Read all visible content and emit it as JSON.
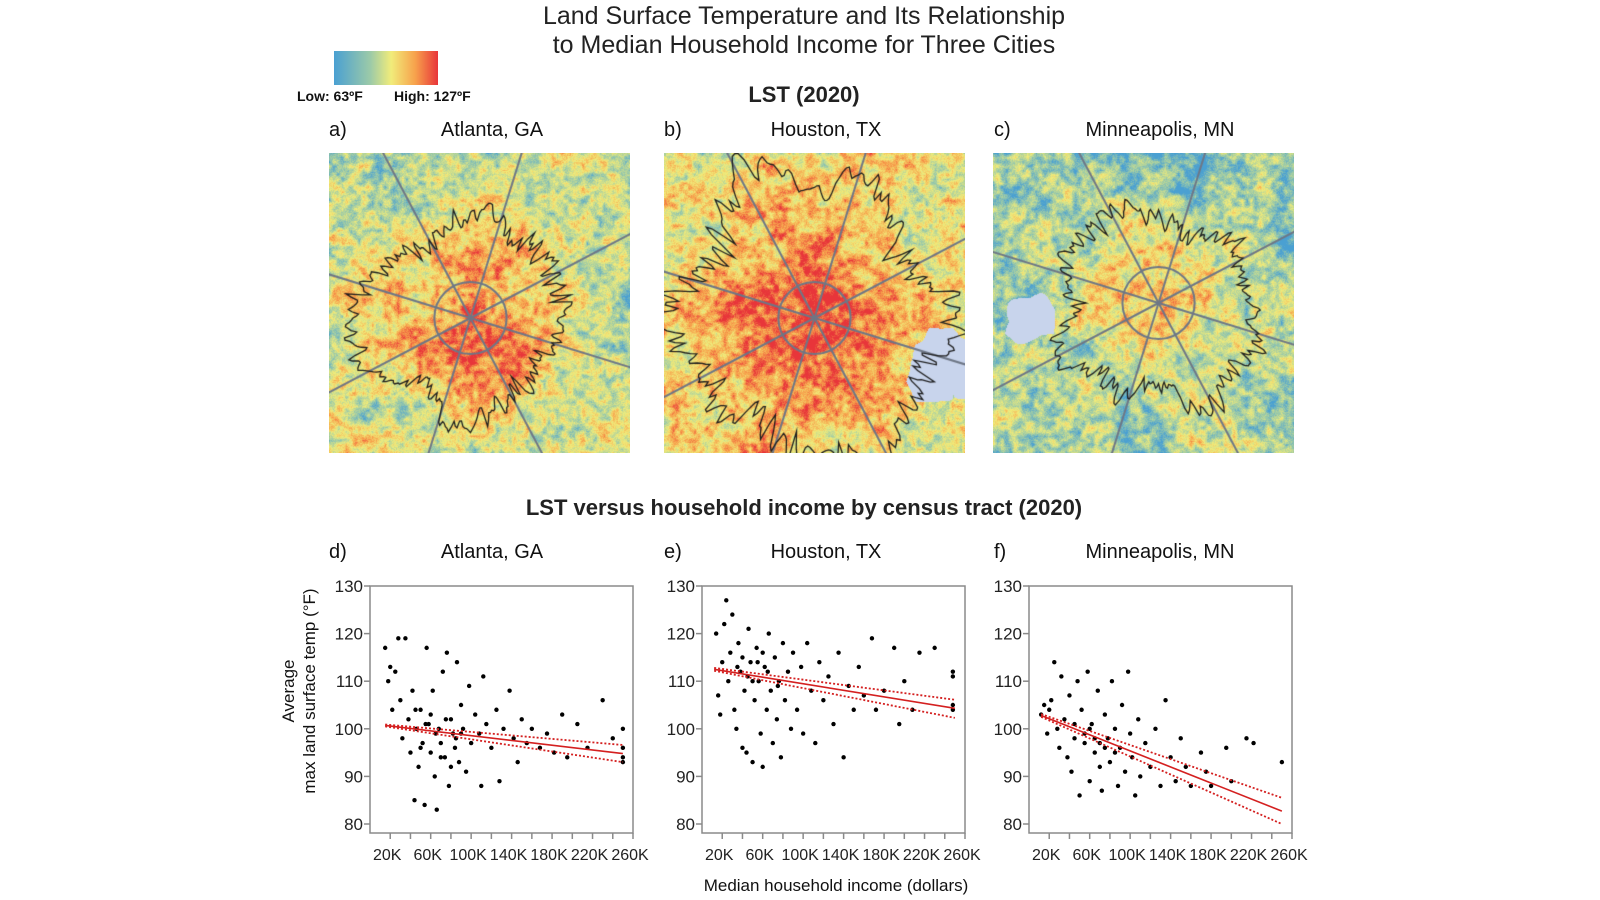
{
  "title_line1": "Land Surface Temperature and Its Relationship",
  "title_line2": "to Median Household Income for Three Cities",
  "legend": {
    "low_label": "Low: 63ºF",
    "high_label": "High: 127ºF",
    "colors": [
      "#4aa0d2",
      "#9ccaa8",
      "#f1ec7a",
      "#f7a24c",
      "#e8353a"
    ]
  },
  "maps_section_title": "LST (2020)",
  "maps": [
    {
      "panel": "a)",
      "city": "Atlanta, GA"
    },
    {
      "panel": "b)",
      "city": "Houston, TX"
    },
    {
      "panel": "c)",
      "city": "Minneapolis, MN"
    }
  ],
  "scatter_section_title": "LST versus household income by census tract (2020)",
  "x_axis_title": "Median household income (dollars)",
  "y_axis_title_line1": "Average",
  "y_axis_title_line2": "max land surface temp (°F)",
  "chart_data": [
    {
      "type": "scatter",
      "panel": "d)",
      "title": "Atlanta, GA",
      "xlabel": "Median household income (dollars)",
      "ylabel": "Average max land surface temp (°F)",
      "x_unit": "thousands of dollars",
      "xlim": [
        0,
        260
      ],
      "ylim": [
        78,
        130
      ],
      "x_ticks": [
        "20K",
        "60K",
        "100K",
        "140K",
        "180K",
        "220K",
        "260K"
      ],
      "y_ticks": [
        "80",
        "90",
        "100",
        "110",
        "120",
        "130"
      ],
      "point_color": "#000000",
      "fit_color": "#d42020",
      "points": [
        [
          15,
          117
        ],
        [
          18,
          110
        ],
        [
          20,
          113
        ],
        [
          22,
          104
        ],
        [
          25,
          112
        ],
        [
          28,
          119
        ],
        [
          30,
          106
        ],
        [
          32,
          98
        ],
        [
          35,
          119
        ],
        [
          38,
          102
        ],
        [
          40,
          95
        ],
        [
          42,
          108
        ],
        [
          44,
          85
        ],
        [
          46,
          100
        ],
        [
          48,
          92
        ],
        [
          50,
          104
        ],
        [
          52,
          97
        ],
        [
          54,
          84
        ],
        [
          56,
          117
        ],
        [
          58,
          101
        ],
        [
          60,
          95
        ],
        [
          62,
          108
        ],
        [
          64,
          90
        ],
        [
          66,
          83
        ],
        [
          68,
          100
        ],
        [
          70,
          97
        ],
        [
          72,
          112
        ],
        [
          74,
          94
        ],
        [
          76,
          116
        ],
        [
          78,
          88
        ],
        [
          80,
          102
        ],
        [
          82,
          99
        ],
        [
          84,
          96
        ],
        [
          86,
          114
        ],
        [
          88,
          93
        ],
        [
          90,
          105
        ],
        [
          92,
          100
        ],
        [
          95,
          91
        ],
        [
          98,
          109
        ],
        [
          100,
          97
        ],
        [
          104,
          103
        ],
        [
          108,
          99
        ],
        [
          110,
          88
        ],
        [
          112,
          111
        ],
        [
          115,
          101
        ],
        [
          120,
          96
        ],
        [
          125,
          104
        ],
        [
          128,
          89
        ],
        [
          132,
          100
        ],
        [
          138,
          108
        ],
        [
          142,
          98
        ],
        [
          146,
          93
        ],
        [
          150,
          102
        ],
        [
          155,
          97
        ],
        [
          160,
          100
        ],
        [
          168,
          96
        ],
        [
          175,
          99
        ],
        [
          182,
          95
        ],
        [
          190,
          103
        ],
        [
          195,
          94
        ],
        [
          205,
          101
        ],
        [
          215,
          96
        ],
        [
          230,
          106
        ],
        [
          240,
          98
        ],
        [
          250,
          100
        ],
        [
          250,
          96
        ],
        [
          250,
          93
        ],
        [
          250,
          94
        ],
        [
          45,
          104
        ],
        [
          55,
          101
        ],
        [
          65,
          99
        ],
        [
          75,
          102
        ],
        [
          85,
          98
        ],
        [
          60,
          103
        ],
        [
          70,
          94
        ],
        [
          50,
          96
        ],
        [
          80,
          92
        ],
        [
          90,
          99
        ]
      ],
      "fit": {
        "x": [
          15,
          250
        ],
        "y": [
          100.7,
          94.8
        ],
        "ci_upper": [
          100.9,
          96.6
        ],
        "ci_lower": [
          100.5,
          93.0
        ]
      }
    },
    {
      "type": "scatter",
      "panel": "e)",
      "title": "Houston, TX",
      "xlabel": "Median household income (dollars)",
      "ylabel": "Average max land surface temp (°F)",
      "x_unit": "thousands of dollars",
      "xlim": [
        0,
        260
      ],
      "ylim": [
        78,
        130
      ],
      "x_ticks": [
        "20K",
        "60K",
        "100K",
        "140K",
        "180K",
        "220K",
        "260K"
      ],
      "y_ticks": [
        "80",
        "90",
        "100",
        "110",
        "120",
        "130"
      ],
      "point_color": "#000000",
      "fit_color": "#d42020",
      "points": [
        [
          14,
          120
        ],
        [
          16,
          107
        ],
        [
          18,
          103
        ],
        [
          20,
          114
        ],
        [
          22,
          122
        ],
        [
          24,
          127
        ],
        [
          26,
          110
        ],
        [
          28,
          116
        ],
        [
          30,
          124
        ],
        [
          32,
          104
        ],
        [
          34,
          100
        ],
        [
          36,
          118
        ],
        [
          38,
          112
        ],
        [
          40,
          96
        ],
        [
          42,
          108
        ],
        [
          44,
          95
        ],
        [
          46,
          121
        ],
        [
          48,
          114
        ],
        [
          50,
          93
        ],
        [
          52,
          106
        ],
        [
          54,
          117
        ],
        [
          56,
          110
        ],
        [
          58,
          99
        ],
        [
          60,
          92
        ],
        [
          62,
          113
        ],
        [
          64,
          104
        ],
        [
          66,
          120
        ],
        [
          68,
          108
        ],
        [
          70,
          97
        ],
        [
          72,
          115
        ],
        [
          74,
          102
        ],
        [
          76,
          110
        ],
        [
          78,
          94
        ],
        [
          80,
          118
        ],
        [
          82,
          106
        ],
        [
          85,
          112
        ],
        [
          88,
          100
        ],
        [
          90,
          116
        ],
        [
          94,
          104
        ],
        [
          98,
          113
        ],
        [
          100,
          99
        ],
        [
          104,
          118
        ],
        [
          108,
          108
        ],
        [
          112,
          97
        ],
        [
          116,
          114
        ],
        [
          120,
          106
        ],
        [
          125,
          111
        ],
        [
          130,
          101
        ],
        [
          135,
          116
        ],
        [
          140,
          94
        ],
        [
          145,
          109
        ],
        [
          150,
          104
        ],
        [
          155,
          113
        ],
        [
          160,
          107
        ],
        [
          168,
          119
        ],
        [
          172,
          104
        ],
        [
          180,
          108
        ],
        [
          190,
          117
        ],
        [
          195,
          101
        ],
        [
          200,
          110
        ],
        [
          208,
          104
        ],
        [
          215,
          116
        ],
        [
          230,
          117
        ],
        [
          248,
          111
        ],
        [
          248,
          105
        ],
        [
          248,
          112
        ],
        [
          248,
          104
        ],
        [
          35,
          113
        ],
        [
          45,
          111
        ],
        [
          55,
          114
        ],
        [
          65,
          112
        ],
        [
          75,
          109
        ],
        [
          40,
          115
        ],
        [
          50,
          110
        ],
        [
          60,
          116
        ]
      ],
      "fit": {
        "x": [
          12,
          250
        ],
        "y": [
          112.5,
          104.3
        ],
        "ci_upper": [
          112.8,
          106.1
        ],
        "ci_lower": [
          112.2,
          102.3
        ]
      }
    },
    {
      "type": "scatter",
      "panel": "f)",
      "title": "Minneapolis, MN",
      "xlabel": "Median household income (dollars)",
      "ylabel": "Average max land surface temp (°F)",
      "x_unit": "thousands of dollars",
      "xlim": [
        0,
        260
      ],
      "ylim": [
        78,
        130
      ],
      "x_ticks": [
        "20K",
        "60K",
        "100K",
        "140K",
        "180K",
        "220K",
        "260K"
      ],
      "y_ticks": [
        "80",
        "90",
        "100",
        "110",
        "120",
        "130"
      ],
      "point_color": "#000000",
      "fit_color": "#d42020",
      "points": [
        [
          12,
          103
        ],
        [
          15,
          105
        ],
        [
          18,
          99
        ],
        [
          20,
          104
        ],
        [
          22,
          106
        ],
        [
          25,
          114
        ],
        [
          28,
          100
        ],
        [
          30,
          96
        ],
        [
          32,
          111
        ],
        [
          35,
          102
        ],
        [
          38,
          94
        ],
        [
          40,
          107
        ],
        [
          42,
          91
        ],
        [
          45,
          98
        ],
        [
          48,
          110
        ],
        [
          50,
          86
        ],
        [
          52,
          104
        ],
        [
          55,
          97
        ],
        [
          58,
          112
        ],
        [
          60,
          89
        ],
        [
          62,
          101
        ],
        [
          65,
          95
        ],
        [
          68,
          108
        ],
        [
          70,
          92
        ],
        [
          72,
          87
        ],
        [
          75,
          103
        ],
        [
          78,
          98
        ],
        [
          80,
          93
        ],
        [
          82,
          110
        ],
        [
          85,
          100
        ],
        [
          88,
          88
        ],
        [
          90,
          96
        ],
        [
          92,
          105
        ],
        [
          95,
          91
        ],
        [
          98,
          112
        ],
        [
          100,
          99
        ],
        [
          102,
          94
        ],
        [
          105,
          86
        ],
        [
          108,
          102
        ],
        [
          110,
          90
        ],
        [
          115,
          97
        ],
        [
          120,
          92
        ],
        [
          125,
          100
        ],
        [
          130,
          88
        ],
        [
          135,
          106
        ],
        [
          140,
          94
        ],
        [
          145,
          89
        ],
        [
          150,
          98
        ],
        [
          155,
          92
        ],
        [
          160,
          88
        ],
        [
          170,
          95
        ],
        [
          175,
          91
        ],
        [
          180,
          88
        ],
        [
          195,
          96
        ],
        [
          200,
          89
        ],
        [
          215,
          98
        ],
        [
          222,
          97
        ],
        [
          250,
          93
        ],
        [
          45,
          101
        ],
        [
          55,
          99
        ],
        [
          65,
          98
        ],
        [
          75,
          96
        ],
        [
          85,
          95
        ],
        [
          60,
          100
        ],
        [
          70,
          97
        ]
      ],
      "fit": {
        "x": [
          12,
          250
        ],
        "y": [
          102.8,
          82.7
        ],
        "ci_upper": [
          103.1,
          85.5
        ],
        "ci_lower": [
          102.5,
          80.0
        ]
      }
    }
  ]
}
